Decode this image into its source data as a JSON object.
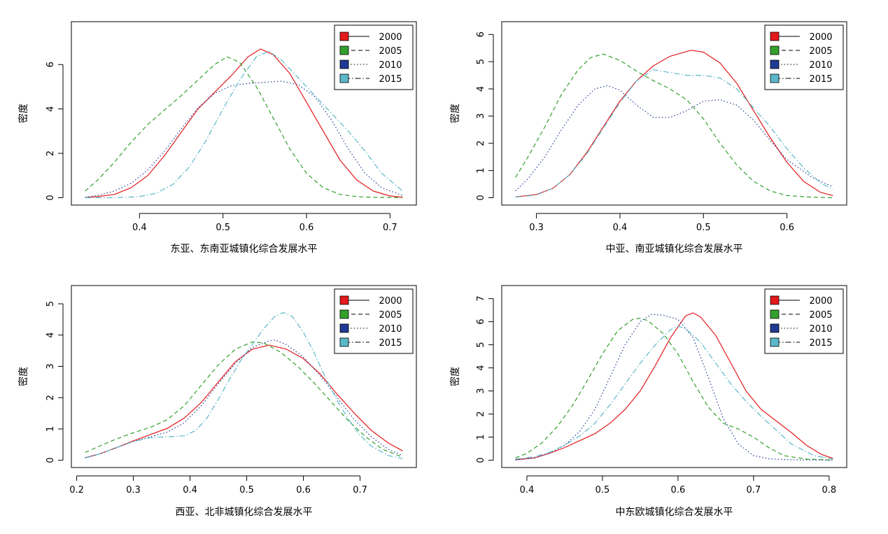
{
  "chart_data": [
    {
      "type": "line",
      "title": "",
      "xlabel": "东亚、东南亚城镇化综合发展水平",
      "ylabel": "密度",
      "xlim": [
        0.335,
        0.715
      ],
      "ylim": [
        0,
        7.6
      ],
      "xticks": [
        0.4,
        0.5,
        0.6,
        0.7
      ],
      "yticks": [
        0,
        2,
        4,
        6
      ],
      "grid": false,
      "legend_position": "top-right",
      "series": [
        {
          "name": "2000",
          "color": "#e41a1c",
          "style": "solid",
          "x": [
            0.335,
            0.35,
            0.37,
            0.39,
            0.41,
            0.43,
            0.45,
            0.47,
            0.49,
            0.51,
            0.53,
            0.545,
            0.56,
            0.58,
            0.6,
            0.62,
            0.64,
            0.66,
            0.68,
            0.7,
            0.715
          ],
          "y": [
            0.01,
            0.05,
            0.15,
            0.45,
            1.0,
            1.9,
            2.95,
            4.0,
            4.75,
            5.5,
            6.35,
            6.7,
            6.45,
            5.6,
            4.3,
            3.0,
            1.7,
            0.8,
            0.3,
            0.08,
            0.02
          ]
        },
        {
          "name": "2005",
          "color": "#33a02c",
          "style": "dashed",
          "x": [
            0.335,
            0.35,
            0.37,
            0.39,
            0.41,
            0.43,
            0.45,
            0.47,
            0.49,
            0.505,
            0.52,
            0.54,
            0.56,
            0.58,
            0.6,
            0.62,
            0.64,
            0.66,
            0.68,
            0.7,
            0.715
          ],
          "y": [
            0.3,
            0.8,
            1.6,
            2.5,
            3.3,
            3.95,
            4.6,
            5.3,
            6.0,
            6.35,
            6.1,
            5.0,
            3.6,
            2.2,
            1.1,
            0.45,
            0.15,
            0.05,
            0.02,
            0.01,
            0.0
          ]
        },
        {
          "name": "2010",
          "color": "#1f3a93",
          "style": "dotted",
          "x": [
            0.335,
            0.35,
            0.37,
            0.39,
            0.41,
            0.43,
            0.45,
            0.47,
            0.49,
            0.51,
            0.53,
            0.55,
            0.57,
            0.59,
            0.61,
            0.63,
            0.65,
            0.67,
            0.69,
            0.715
          ],
          "y": [
            0.02,
            0.1,
            0.3,
            0.65,
            1.25,
            2.1,
            3.1,
            4.05,
            4.7,
            5.05,
            5.15,
            5.2,
            5.25,
            5.1,
            4.55,
            3.5,
            2.2,
            1.1,
            0.45,
            0.1
          ]
        },
        {
          "name": "2015",
          "color": "#5bb8c8",
          "style": "dashdot",
          "x": [
            0.335,
            0.37,
            0.4,
            0.42,
            0.44,
            0.46,
            0.48,
            0.5,
            0.52,
            0.54,
            0.555,
            0.57,
            0.59,
            0.61,
            0.63,
            0.65,
            0.67,
            0.69,
            0.715
          ],
          "y": [
            0.0,
            0.0,
            0.05,
            0.2,
            0.6,
            1.4,
            2.6,
            4.0,
            5.3,
            6.35,
            6.6,
            6.2,
            5.4,
            4.6,
            3.8,
            3.0,
            2.1,
            1.1,
            0.3
          ]
        }
      ]
    },
    {
      "type": "line",
      "title": "",
      "xlabel": "中亚、南亚城镇化综合发展水平",
      "ylabel": "密度",
      "xlim": [
        0.275,
        0.655
      ],
      "ylim": [
        0,
        6.2
      ],
      "xticks": [
        0.3,
        0.4,
        0.5,
        0.6
      ],
      "yticks": [
        0,
        1,
        2,
        3,
        4,
        5,
        6
      ],
      "grid": false,
      "legend_position": "top-right",
      "series": [
        {
          "name": "2000",
          "color": "#e41a1c",
          "style": "solid",
          "x": [
            0.275,
            0.3,
            0.32,
            0.34,
            0.36,
            0.38,
            0.4,
            0.42,
            0.44,
            0.46,
            0.485,
            0.5,
            0.52,
            0.54,
            0.56,
            0.58,
            0.6,
            0.62,
            0.64,
            0.655
          ],
          "y": [
            0.03,
            0.12,
            0.35,
            0.85,
            1.65,
            2.6,
            3.55,
            4.3,
            4.85,
            5.2,
            5.42,
            5.35,
            4.95,
            4.2,
            3.2,
            2.2,
            1.3,
            0.6,
            0.2,
            0.08
          ]
        },
        {
          "name": "2005",
          "color": "#33a02c",
          "style": "dashed",
          "x": [
            0.275,
            0.29,
            0.31,
            0.33,
            0.35,
            0.365,
            0.38,
            0.4,
            0.42,
            0.44,
            0.46,
            0.48,
            0.5,
            0.52,
            0.54,
            0.56,
            0.58,
            0.6,
            0.63,
            0.655
          ],
          "y": [
            0.75,
            1.5,
            2.6,
            3.8,
            4.7,
            5.15,
            5.28,
            5.05,
            4.65,
            4.3,
            4.0,
            3.6,
            2.9,
            2.0,
            1.2,
            0.6,
            0.25,
            0.08,
            0.02,
            0.0
          ]
        },
        {
          "name": "2010",
          "color": "#1f3a93",
          "style": "dotted",
          "x": [
            0.275,
            0.29,
            0.31,
            0.33,
            0.35,
            0.37,
            0.385,
            0.4,
            0.42,
            0.44,
            0.46,
            0.48,
            0.5,
            0.52,
            0.54,
            0.56,
            0.58,
            0.6,
            0.63,
            0.655
          ],
          "y": [
            0.25,
            0.7,
            1.5,
            2.5,
            3.4,
            4.0,
            4.12,
            3.95,
            3.4,
            2.95,
            2.95,
            3.2,
            3.55,
            3.6,
            3.4,
            2.85,
            2.1,
            1.4,
            0.75,
            0.4
          ]
        },
        {
          "name": "2015",
          "color": "#5bb8c8",
          "style": "dashdot",
          "x": [
            0.275,
            0.3,
            0.32,
            0.34,
            0.36,
            0.38,
            0.4,
            0.42,
            0.44,
            0.46,
            0.48,
            0.5,
            0.52,
            0.54,
            0.56,
            0.58,
            0.6,
            0.62,
            0.64,
            0.655
          ],
          "y": [
            0.02,
            0.1,
            0.35,
            0.85,
            1.6,
            2.55,
            3.5,
            4.3,
            4.7,
            4.6,
            4.5,
            4.5,
            4.4,
            4.0,
            3.3,
            2.6,
            1.8,
            1.1,
            0.55,
            0.3
          ]
        }
      ]
    },
    {
      "type": "line",
      "title": "",
      "xlabel": "西亚、北非城镇化综合发展水平",
      "ylabel": "密度",
      "xlim": [
        0.215,
        0.775
      ],
      "ylim": [
        0,
        5.35
      ],
      "xticks": [
        0.2,
        0.3,
        0.4,
        0.5,
        0.6,
        0.7
      ],
      "yticks": [
        0,
        1,
        2,
        3,
        4,
        5
      ],
      "grid": false,
      "legend_position": "top-right",
      "series": [
        {
          "name": "2000",
          "color": "#e41a1c",
          "style": "solid",
          "x": [
            0.215,
            0.24,
            0.27,
            0.3,
            0.33,
            0.36,
            0.39,
            0.42,
            0.45,
            0.48,
            0.51,
            0.54,
            0.57,
            0.6,
            0.63,
            0.66,
            0.69,
            0.72,
            0.75,
            0.775
          ],
          "y": [
            0.08,
            0.2,
            0.4,
            0.62,
            0.82,
            1.02,
            1.35,
            1.85,
            2.5,
            3.15,
            3.55,
            3.68,
            3.55,
            3.25,
            2.75,
            2.1,
            1.5,
            0.95,
            0.55,
            0.3
          ]
        },
        {
          "name": "2005",
          "color": "#33a02c",
          "style": "dashed",
          "x": [
            0.215,
            0.24,
            0.27,
            0.3,
            0.33,
            0.36,
            0.39,
            0.42,
            0.45,
            0.48,
            0.51,
            0.53,
            0.56,
            0.59,
            0.62,
            0.65,
            0.68,
            0.71,
            0.74,
            0.775
          ],
          "y": [
            0.25,
            0.45,
            0.68,
            0.88,
            1.05,
            1.3,
            1.75,
            2.4,
            3.05,
            3.55,
            3.78,
            3.75,
            3.45,
            3.0,
            2.45,
            1.85,
            1.25,
            0.75,
            0.35,
            0.1
          ]
        },
        {
          "name": "2010",
          "color": "#1f3a93",
          "style": "dotted",
          "x": [
            0.215,
            0.24,
            0.27,
            0.3,
            0.33,
            0.36,
            0.39,
            0.42,
            0.45,
            0.48,
            0.51,
            0.54,
            0.55,
            0.57,
            0.6,
            0.63,
            0.66,
            0.69,
            0.72,
            0.75,
            0.775
          ],
          "y": [
            0.08,
            0.2,
            0.4,
            0.6,
            0.75,
            0.9,
            1.2,
            1.75,
            2.45,
            3.1,
            3.6,
            3.82,
            3.84,
            3.7,
            3.3,
            2.7,
            2.0,
            1.3,
            0.75,
            0.35,
            0.15
          ]
        },
        {
          "name": "2015",
          "color": "#5bb8c8",
          "style": "dashdot",
          "x": [
            0.215,
            0.24,
            0.27,
            0.3,
            0.33,
            0.36,
            0.39,
            0.41,
            0.43,
            0.45,
            0.47,
            0.49,
            0.51,
            0.53,
            0.55,
            0.565,
            0.58,
            0.6,
            0.62,
            0.64,
            0.66,
            0.68,
            0.7,
            0.72,
            0.75,
            0.775
          ],
          "y": [
            0.07,
            0.2,
            0.4,
            0.6,
            0.72,
            0.75,
            0.78,
            0.95,
            1.35,
            1.95,
            2.6,
            3.2,
            3.7,
            4.2,
            4.6,
            4.72,
            4.6,
            4.1,
            3.4,
            2.6,
            1.9,
            1.3,
            0.8,
            0.45,
            0.15,
            0.05
          ]
        }
      ]
    },
    {
      "type": "line",
      "title": "",
      "xlabel": "中东欧城镇化综合发展水平",
      "ylabel": "密度",
      "xlim": [
        0.385,
        0.805
      ],
      "ylim": [
        0,
        7.25
      ],
      "xticks": [
        0.4,
        0.5,
        0.6,
        0.7,
        0.8
      ],
      "yticks": [
        0,
        1,
        2,
        3,
        4,
        5,
        6,
        7
      ],
      "grid": false,
      "legend_position": "top-right",
      "series": [
        {
          "name": "2000",
          "color": "#e41a1c",
          "style": "solid",
          "x": [
            0.385,
            0.41,
            0.43,
            0.45,
            0.47,
            0.49,
            0.51,
            0.53,
            0.55,
            0.57,
            0.59,
            0.61,
            0.62,
            0.63,
            0.65,
            0.67,
            0.69,
            0.71,
            0.73,
            0.75,
            0.77,
            0.79,
            0.805
          ],
          "y": [
            0.02,
            0.1,
            0.3,
            0.55,
            0.85,
            1.15,
            1.6,
            2.2,
            3.0,
            4.1,
            5.3,
            6.25,
            6.38,
            6.2,
            5.4,
            4.2,
            3.0,
            2.2,
            1.7,
            1.2,
            0.65,
            0.25,
            0.08
          ]
        },
        {
          "name": "2005",
          "color": "#33a02c",
          "style": "dashed",
          "x": [
            0.385,
            0.4,
            0.42,
            0.44,
            0.46,
            0.48,
            0.5,
            0.52,
            0.54,
            0.55,
            0.56,
            0.58,
            0.6,
            0.62,
            0.64,
            0.66,
            0.68,
            0.7,
            0.72,
            0.74,
            0.77,
            0.805
          ],
          "y": [
            0.1,
            0.3,
            0.75,
            1.45,
            2.35,
            3.45,
            4.6,
            5.6,
            6.1,
            6.15,
            6.05,
            5.5,
            4.6,
            3.4,
            2.3,
            1.6,
            1.35,
            1.0,
            0.55,
            0.2,
            0.05,
            0.01
          ]
        },
        {
          "name": "2010",
          "color": "#1f3a93",
          "style": "dotted",
          "x": [
            0.385,
            0.41,
            0.43,
            0.45,
            0.47,
            0.49,
            0.51,
            0.53,
            0.55,
            0.565,
            0.58,
            0.6,
            0.62,
            0.64,
            0.66,
            0.68,
            0.7,
            0.72,
            0.75,
            0.805
          ],
          "y": [
            0.01,
            0.1,
            0.3,
            0.65,
            1.25,
            2.2,
            3.6,
            5.0,
            6.0,
            6.32,
            6.28,
            6.1,
            5.3,
            3.6,
            1.8,
            0.7,
            0.2,
            0.06,
            0.02,
            0.0
          ]
        },
        {
          "name": "2015",
          "color": "#5bb8c8",
          "style": "dashdot",
          "x": [
            0.385,
            0.41,
            0.43,
            0.45,
            0.47,
            0.49,
            0.51,
            0.53,
            0.55,
            0.57,
            0.59,
            0.6,
            0.61,
            0.63,
            0.65,
            0.67,
            0.69,
            0.71,
            0.73,
            0.75,
            0.78,
            0.805
          ],
          "y": [
            0.05,
            0.15,
            0.35,
            0.65,
            1.05,
            1.6,
            2.4,
            3.3,
            4.2,
            5.0,
            5.65,
            5.8,
            5.7,
            5.1,
            4.2,
            3.3,
            2.55,
            1.9,
            1.3,
            0.7,
            0.2,
            0.05
          ]
        }
      ]
    }
  ]
}
